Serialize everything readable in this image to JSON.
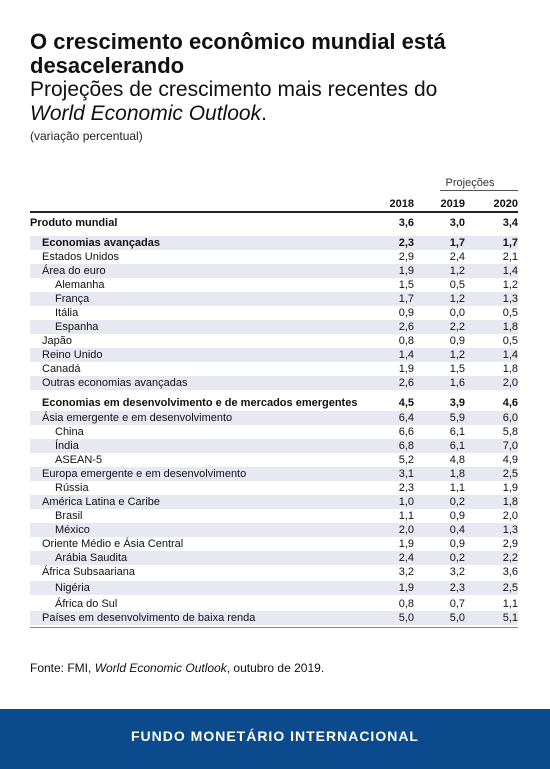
{
  "header": {
    "title": "O crescimento econômico mundial está desacelerando",
    "subtitle_plain": "Projeções de crescimento mais recentes do",
    "subtitle_italic": "World Economic Outlook",
    "subtitle_end": ".",
    "unit": "(variação percentual)"
  },
  "chart_data": {
    "type": "table",
    "projections_label": "Projeções",
    "columns": [
      "2018",
      "2019",
      "2020"
    ],
    "rows": [
      {
        "label": "Produto mundial",
        "values": [
          "3,6",
          "3,0",
          "3,4"
        ],
        "level": 0,
        "bold": true
      },
      {
        "label": "Economias avançadas",
        "values": [
          "2,3",
          "1,7",
          "1,7"
        ],
        "level": 1,
        "bold": true
      },
      {
        "label": "Estados Unidos",
        "values": [
          "2,9",
          "2,4",
          "2,1"
        ],
        "level": 1,
        "bold": false
      },
      {
        "label": "Área do euro",
        "values": [
          "1,9",
          "1,2",
          "1,4"
        ],
        "level": 1,
        "bold": false
      },
      {
        "label": "Alemanha",
        "values": [
          "1,5",
          "0,5",
          "1,2"
        ],
        "level": 2,
        "bold": false
      },
      {
        "label": "França",
        "values": [
          "1,7",
          "1,2",
          "1,3"
        ],
        "level": 2,
        "bold": false
      },
      {
        "label": "Itália",
        "values": [
          "0,9",
          "0,0",
          "0,5"
        ],
        "level": 2,
        "bold": false
      },
      {
        "label": "Espanha",
        "values": [
          "2,6",
          "2,2",
          "1,8"
        ],
        "level": 2,
        "bold": false
      },
      {
        "label": "Japão",
        "values": [
          "0,8",
          "0,9",
          "0,5"
        ],
        "level": 1,
        "bold": false
      },
      {
        "label": "Reino Unido",
        "values": [
          "1,4",
          "1,2",
          "1,4"
        ],
        "level": 1,
        "bold": false
      },
      {
        "label": "Canadá",
        "values": [
          "1,9",
          "1,5",
          "1,8"
        ],
        "level": 1,
        "bold": false
      },
      {
        "label": "Outras economias avançadas",
        "values": [
          "2,6",
          "1,6",
          "2,0"
        ],
        "level": 1,
        "bold": false
      },
      {
        "label": "Economias em desenvolvimento e de mercados emergentes",
        "values": [
          "4,5",
          "3,9",
          "4,6"
        ],
        "level": 1,
        "bold": true
      },
      {
        "label": "Ásia emergente e em desenvolvimento",
        "values": [
          "6,4",
          "5,9",
          "6,0"
        ],
        "level": 1,
        "bold": false
      },
      {
        "label": "China",
        "values": [
          "6,6",
          "6,1",
          "5,8"
        ],
        "level": 2,
        "bold": false
      },
      {
        "label": "Índia",
        "values": [
          "6,8",
          "6,1",
          "7,0"
        ],
        "level": 2,
        "bold": false
      },
      {
        "label": "ASEAN-5",
        "values": [
          "5,2",
          "4,8",
          "4,9"
        ],
        "level": 2,
        "bold": false
      },
      {
        "label": "Europa emergente e em desenvolvimento",
        "values": [
          "3,1",
          "1,8",
          "2,5"
        ],
        "level": 1,
        "bold": false
      },
      {
        "label": "Rússia",
        "values": [
          "2,3",
          "1,1",
          "1,9"
        ],
        "level": 2,
        "bold": false
      },
      {
        "label": "América Latina e Caribe",
        "values": [
          "1,0",
          "0,2",
          "1,8"
        ],
        "level": 1,
        "bold": false
      },
      {
        "label": "Brasil",
        "values": [
          "1,1",
          "0,9",
          "2,0"
        ],
        "level": 2,
        "bold": false
      },
      {
        "label": "México",
        "values": [
          "2,0",
          "0,4",
          "1,3"
        ],
        "level": 2,
        "bold": false
      },
      {
        "label": "Oriente Médio e Ásia Central",
        "values": [
          "1,9",
          "0,9",
          "2,9"
        ],
        "level": 1,
        "bold": false
      },
      {
        "label": "Arábia Saudita",
        "values": [
          "2,4",
          "0,2",
          "2,2"
        ],
        "level": 2,
        "bold": false
      },
      {
        "label": "África Subsaariana",
        "values": [
          "3,2",
          "3,2",
          "3,6"
        ],
        "level": 1,
        "bold": false
      },
      {
        "label": "Nigéria",
        "values": [
          "1,9",
          "2,3",
          "2,5"
        ],
        "level": 2,
        "bold": false
      },
      {
        "label": "África do Sul",
        "values": [
          "0,8",
          "0,7",
          "1,1"
        ],
        "level": 2,
        "bold": false
      },
      {
        "label": "Países em desenvolvimento de baixa renda",
        "values": [
          "5,0",
          "5,0",
          "5,1"
        ],
        "level": 1,
        "bold": false
      }
    ]
  },
  "source": {
    "prefix": "Fonte: FMI, ",
    "italic": "World Economic Outlook",
    "suffix": ", outubro de 2019."
  },
  "footer": {
    "text": "FUNDO MONETÁRIO INTERNACIONAL",
    "background_color": "#0b4a8c"
  },
  "colors": {
    "band": "#e8e8f2"
  }
}
